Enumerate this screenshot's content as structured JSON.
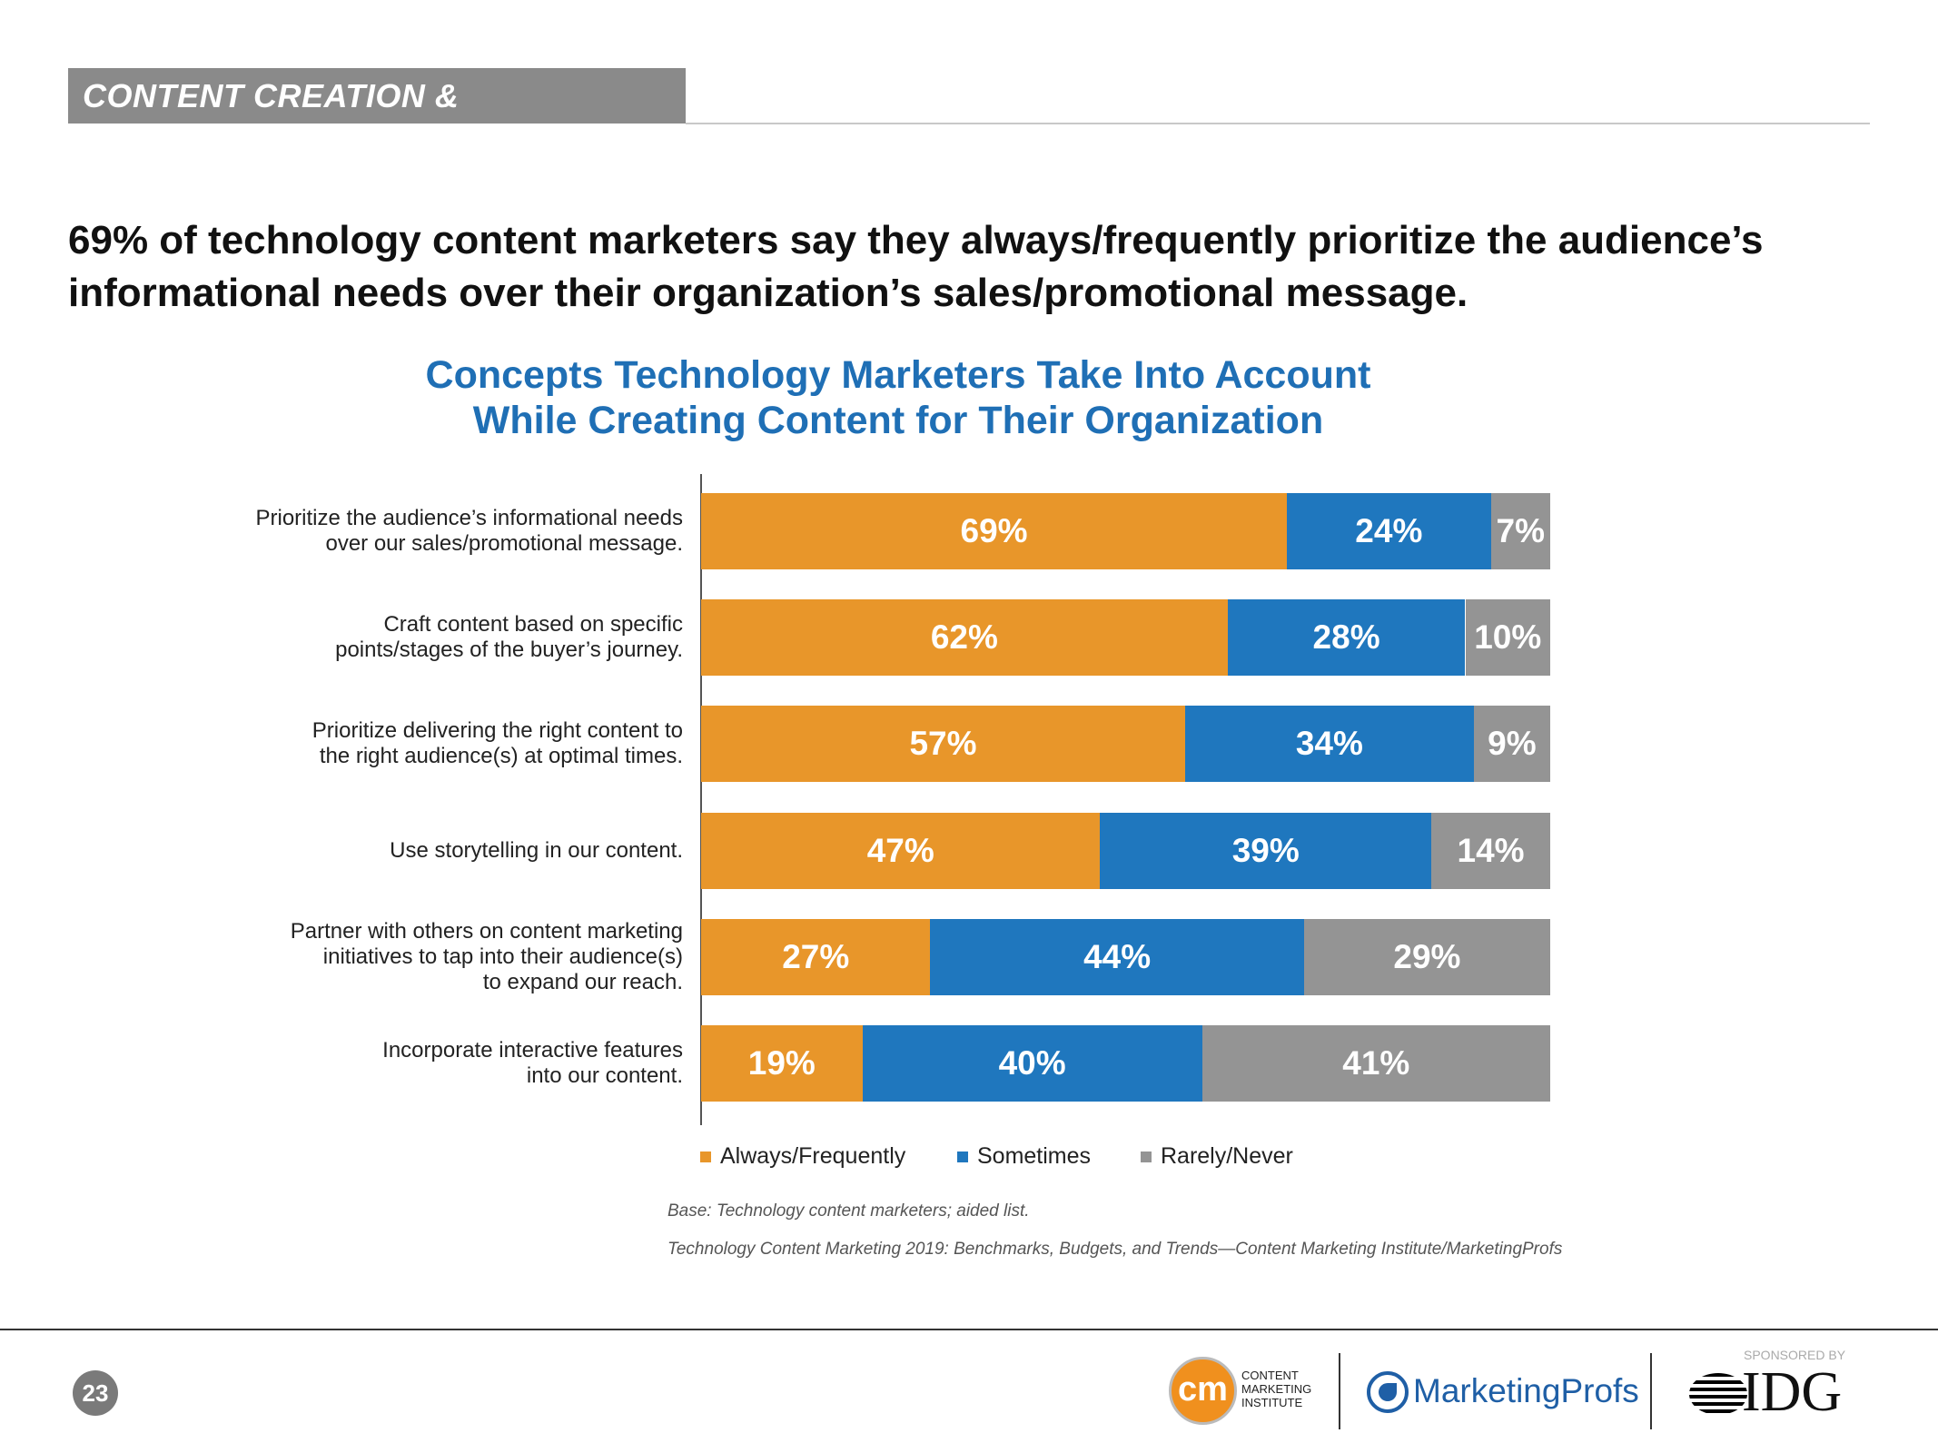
{
  "header": {
    "section": "CONTENT CREATION & DISTRIBUTION",
    "headline": "69% of technology content marketers say they always/frequently prioritize the audience’s informational needs over their organization’s sales/promotional message."
  },
  "chart_data": {
    "type": "bar",
    "orientation": "horizontal-stacked",
    "title_lines": [
      "Concepts Technology Marketers Take Into Account",
      "While Creating Content for Their Organization"
    ],
    "categories": [
      [
        "Prioritize the audience’s informational needs",
        "over our sales/promotional message."
      ],
      [
        "Craft content based on specific",
        "points/stages of the buyer’s journey."
      ],
      [
        "Prioritize delivering the right content to",
        "the right audience(s) at optimal times."
      ],
      [
        "Use storytelling in our content."
      ],
      [
        "Partner with others on content marketing",
        "initiatives to tap into their audience(s)",
        "to expand our reach."
      ],
      [
        "Incorporate interactive features",
        "into our content."
      ]
    ],
    "series": [
      {
        "name": "Always/Frequently",
        "color": "#E8962A",
        "values": [
          69,
          62,
          57,
          47,
          27,
          19
        ]
      },
      {
        "name": "Sometimes",
        "color": "#1F77BE",
        "values": [
          24,
          28,
          34,
          39,
          44,
          40
        ]
      },
      {
        "name": "Rarely/Never",
        "color": "#949494",
        "values": [
          7,
          10,
          9,
          14,
          29,
          41
        ]
      }
    ],
    "xlim": [
      0,
      100
    ],
    "unit": "%",
    "legend": "bottom",
    "grid": false
  },
  "notes": {
    "base": "Base: Technology content marketers; aided list.",
    "source": "Technology Content Marketing 2019: Benchmarks, Budgets, and Trends—Content Marketing Institute/MarketingProfs"
  },
  "footer": {
    "page": "23",
    "cmi_lines": [
      "CONTENT",
      "MARKETING",
      "INSTITUTE"
    ],
    "cmi_mark": "cm",
    "mprofs": "MarketingProfs",
    "sponsored": "SPONSORED BY",
    "idg": "IDG"
  }
}
